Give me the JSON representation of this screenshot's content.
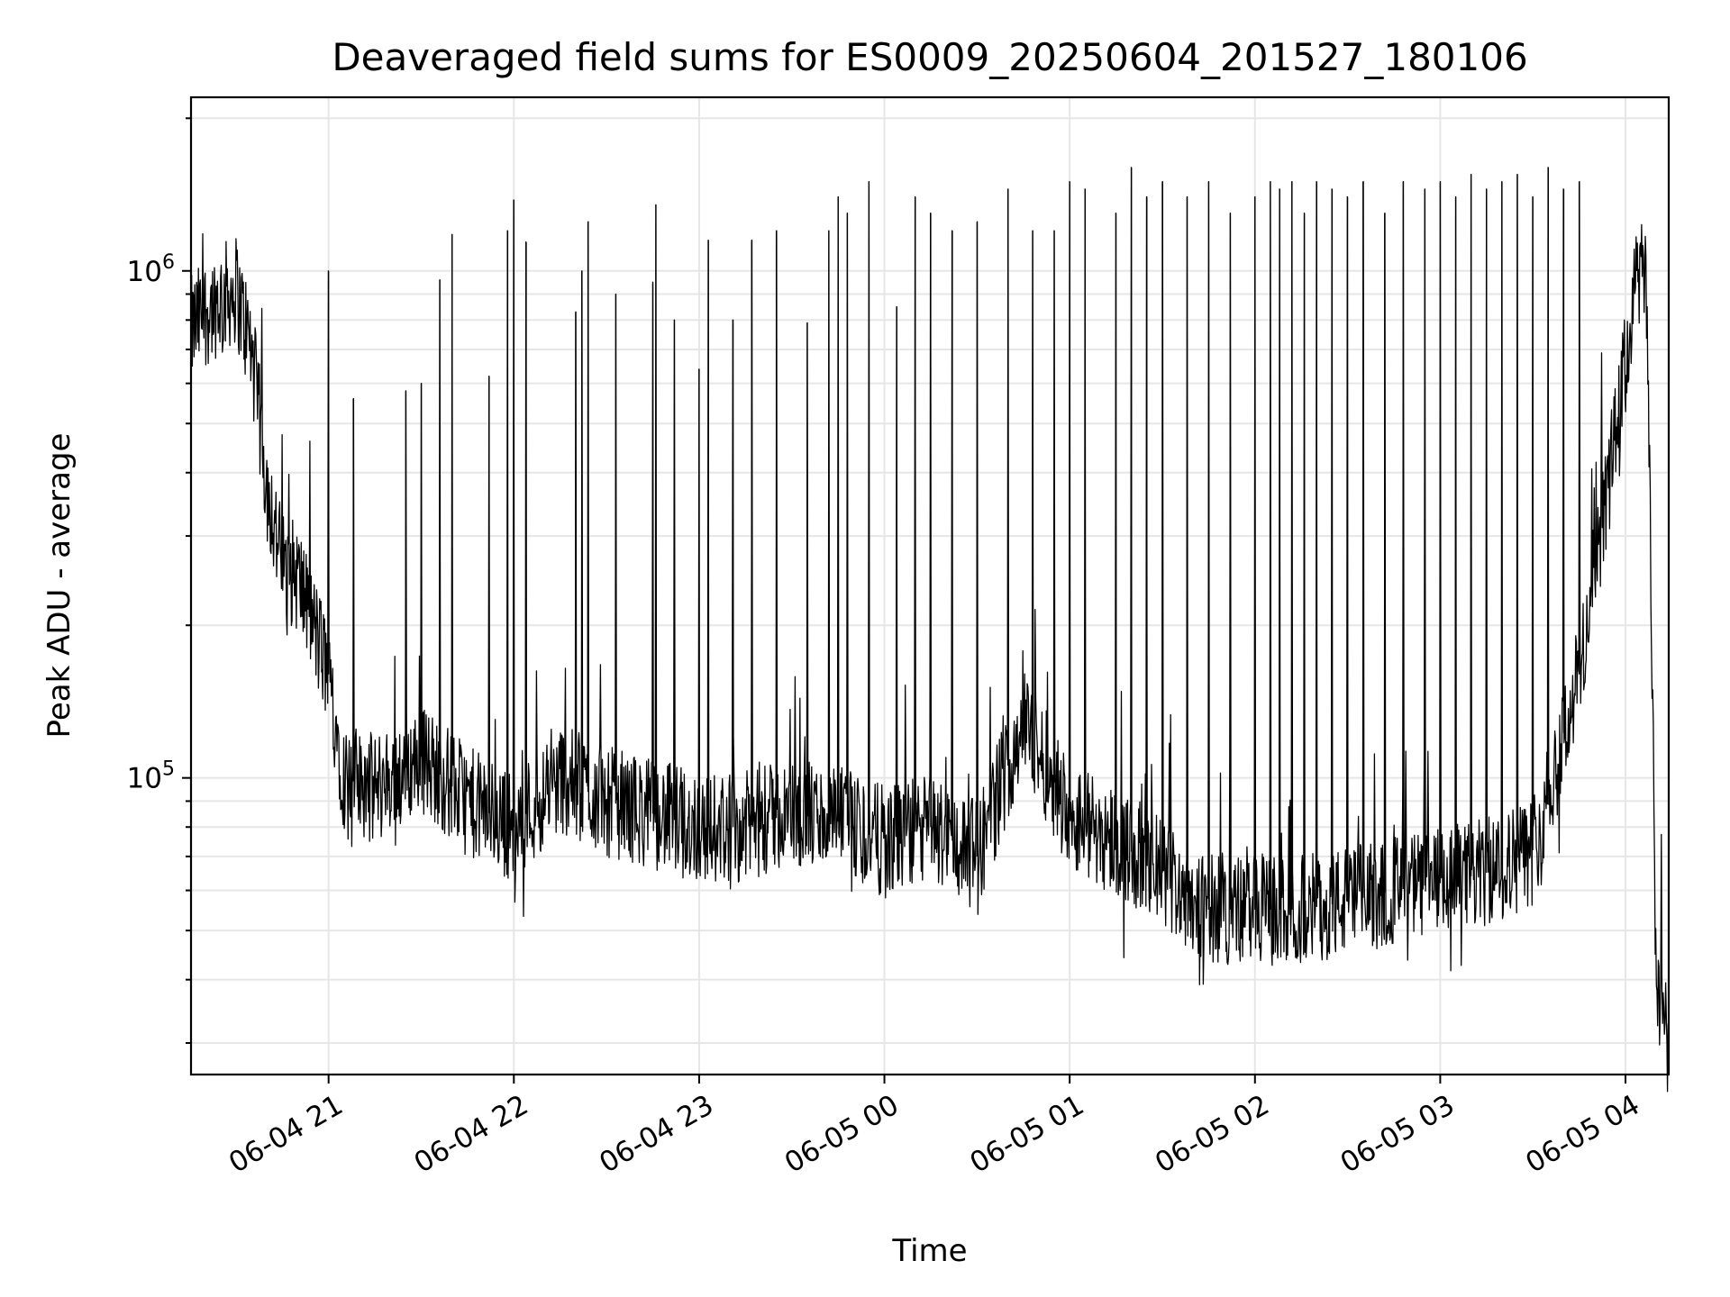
{
  "chart_data": {
    "type": "line",
    "title": "Deaveraged field sums for ES0009_20250604_201527_180106",
    "xlabel": "Time",
    "ylabel": "Peak ADU - average",
    "x_ticks": [
      "06-04 21",
      "06-04 22",
      "06-04 23",
      "06-05 00",
      "06-05 01",
      "06-05 02",
      "06-05 03",
      "06-05 04"
    ],
    "y_ticks": [
      {
        "base": "10",
        "exp": "5",
        "value": 100000
      },
      {
        "base": "10",
        "exp": "6",
        "value": 1000000
      }
    ],
    "xlim": [
      "2025-06-04 20:15:27",
      "2025-06-05 04:14:00"
    ],
    "ylim": [
      26000,
      2200000
    ],
    "y_scale": "log",
    "grid": true,
    "series": [
      {
        "color": "#000000",
        "x": [
          "2025-06-04 20:15:27",
          "2025-06-04 20:20",
          "2025-06-04 20:25",
          "2025-06-04 20:30",
          "2025-06-04 20:35",
          "2025-06-04 20:40",
          "2025-06-04 20:45",
          "2025-06-04 20:50",
          "2025-06-04 20:55",
          "2025-06-04 21:00",
          "2025-06-04 21:05",
          "2025-06-04 21:15",
          "2025-06-04 21:30",
          "2025-06-04 21:45",
          "2025-06-04 22:00",
          "2025-06-04 22:15",
          "2025-06-04 22:30",
          "2025-06-04 22:45",
          "2025-06-04 23:00",
          "2025-06-04 23:15",
          "2025-06-04 23:30",
          "2025-06-04 23:45",
          "2025-06-05 00:00",
          "2025-06-05 00:15",
          "2025-06-05 00:30",
          "2025-06-05 00:45",
          "2025-06-05 01:00",
          "2025-06-05 01:15",
          "2025-06-05 01:30",
          "2025-06-05 01:45",
          "2025-06-05 02:00",
          "2025-06-05 02:15",
          "2025-06-05 02:30",
          "2025-06-05 02:45",
          "2025-06-05 03:00",
          "2025-06-05 03:15",
          "2025-06-05 03:30",
          "2025-06-05 03:45",
          "2025-06-05 03:55",
          "2025-06-05 04:00",
          "2025-06-05 04:04",
          "2025-06-05 04:07",
          "2025-06-05 04:10",
          "2025-06-05 04:14"
        ],
        "y": [
          760000,
          830000,
          880000,
          920000,
          700000,
          380000,
          260000,
          250000,
          200000,
          160000,
          100000,
          95000,
          110000,
          90000,
          80000,
          100000,
          90000,
          85000,
          80000,
          80000,
          85000,
          82000,
          75000,
          80000,
          70000,
          130000,
          85000,
          75000,
          65000,
          55000,
          55000,
          55000,
          57000,
          60000,
          62000,
          65000,
          72000,
          160000,
          400000,
          650000,
          1000000,
          900000,
          40000,
          30000
        ],
        "spikes": [
          [
            "2025-06-04 21:00",
            1000000
          ],
          [
            "2025-06-04 21:08",
            560000
          ],
          [
            "2025-06-04 21:25",
            580000
          ],
          [
            "2025-06-04 21:30",
            600000
          ],
          [
            "2025-06-04 21:36",
            960000
          ],
          [
            "2025-06-04 21:40",
            1180000
          ],
          [
            "2025-06-04 21:52",
            620000
          ],
          [
            "2025-06-04 21:58",
            1200000
          ],
          [
            "2025-06-04 22:00",
            1380000
          ],
          [
            "2025-06-04 22:04",
            1140000
          ],
          [
            "2025-06-04 22:20",
            830000
          ],
          [
            "2025-06-04 22:22",
            1000000
          ],
          [
            "2025-06-04 22:24",
            1250000
          ],
          [
            "2025-06-04 22:33",
            900000
          ],
          [
            "2025-06-04 22:45",
            950000
          ],
          [
            "2025-06-04 22:46",
            1350000
          ],
          [
            "2025-06-04 22:52",
            800000
          ],
          [
            "2025-06-04 23:00",
            640000
          ],
          [
            "2025-06-04 23:03",
            1150000
          ],
          [
            "2025-06-04 23:11",
            800000
          ],
          [
            "2025-06-04 23:17",
            1150000
          ],
          [
            "2025-06-04 23:25",
            1200000
          ],
          [
            "2025-06-04 23:35",
            790000
          ],
          [
            "2025-06-04 23:42",
            1200000
          ],
          [
            "2025-06-04 23:45",
            1400000
          ],
          [
            "2025-06-04 23:48",
            1300000
          ],
          [
            "2025-06-04 23:55",
            1500000
          ],
          [
            "2025-06-05 00:04",
            850000
          ],
          [
            "2025-06-05 00:10",
            1400000
          ],
          [
            "2025-06-05 00:15",
            1300000
          ],
          [
            "2025-06-05 00:22",
            1200000
          ],
          [
            "2025-06-05 00:30",
            1250000
          ],
          [
            "2025-06-05 00:40",
            1450000
          ],
          [
            "2025-06-05 00:48",
            1200000
          ],
          [
            "2025-06-05 00:55",
            1200000
          ],
          [
            "2025-06-05 01:00",
            1500000
          ],
          [
            "2025-06-05 01:05",
            1450000
          ],
          [
            "2025-06-05 01:15",
            1300000
          ],
          [
            "2025-06-05 01:20",
            1600000
          ],
          [
            "2025-06-05 01:25",
            1400000
          ],
          [
            "2025-06-05 01:30",
            1500000
          ],
          [
            "2025-06-05 01:38",
            1400000
          ],
          [
            "2025-06-05 01:45",
            1500000
          ],
          [
            "2025-06-05 01:52",
            1300000
          ],
          [
            "2025-06-05 02:00",
            1400000
          ],
          [
            "2025-06-05 02:05",
            1500000
          ],
          [
            "2025-06-05 02:08",
            1450000
          ],
          [
            "2025-06-05 02:12",
            1500000
          ],
          [
            "2025-06-05 02:16",
            1300000
          ],
          [
            "2025-06-05 02:20",
            1500000
          ],
          [
            "2025-06-05 02:25",
            1450000
          ],
          [
            "2025-06-05 02:30",
            1400000
          ],
          [
            "2025-06-05 02:35",
            1500000
          ],
          [
            "2025-06-05 02:42",
            1300000
          ],
          [
            "2025-06-05 02:48",
            1500000
          ],
          [
            "2025-06-05 02:55",
            1450000
          ],
          [
            "2025-06-05 03:00",
            1500000
          ],
          [
            "2025-06-05 03:05",
            1400000
          ],
          [
            "2025-06-05 03:10",
            1550000
          ],
          [
            "2025-06-05 03:15",
            1450000
          ],
          [
            "2025-06-05 03:20",
            1500000
          ],
          [
            "2025-06-05 03:25",
            1550000
          ],
          [
            "2025-06-05 03:30",
            1400000
          ],
          [
            "2025-06-05 03:35",
            1600000
          ],
          [
            "2025-06-05 03:40",
            1450000
          ],
          [
            "2025-06-05 03:45",
            1500000
          ]
        ]
      }
    ]
  }
}
